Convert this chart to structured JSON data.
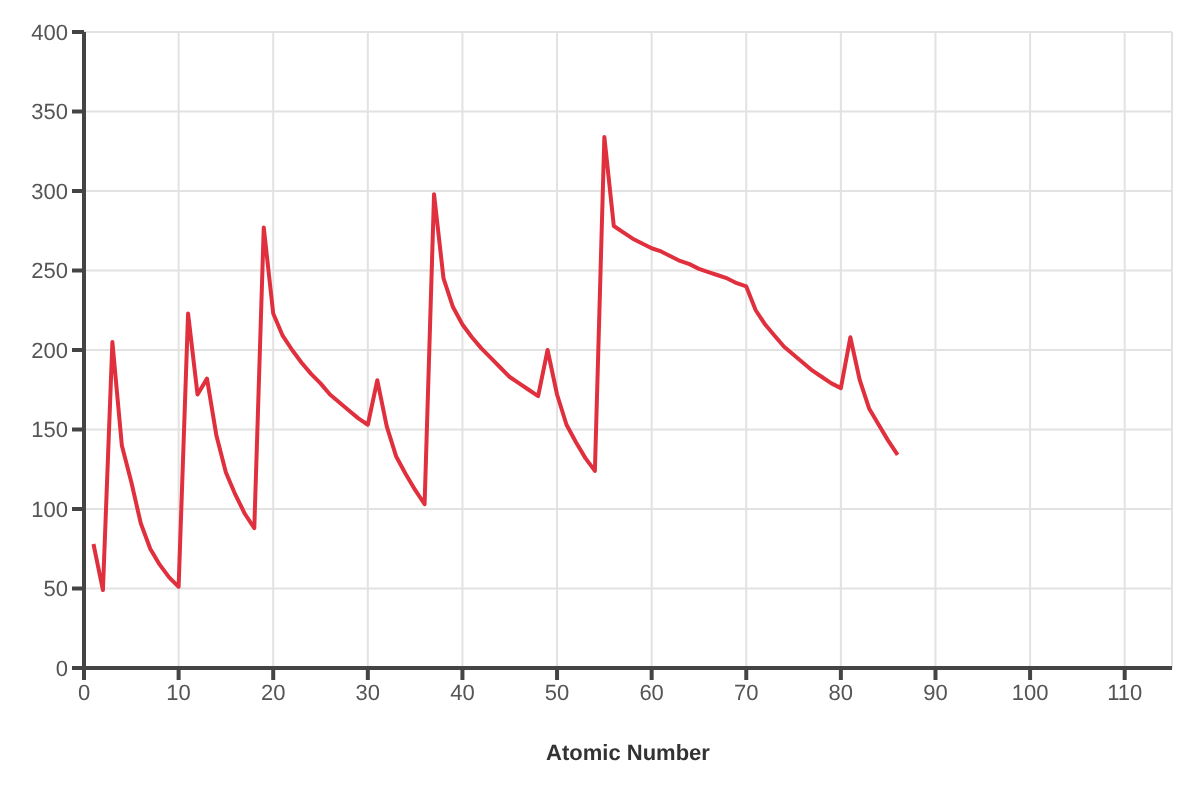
{
  "chart_data": {
    "type": "line",
    "xlabel": "Atomic Number",
    "x": [
      1,
      2,
      3,
      4,
      5,
      6,
      7,
      8,
      9,
      10,
      11,
      12,
      13,
      14,
      15,
      16,
      17,
      18,
      19,
      20,
      21,
      22,
      23,
      24,
      25,
      26,
      27,
      28,
      29,
      30,
      31,
      32,
      33,
      34,
      35,
      36,
      37,
      38,
      39,
      40,
      41,
      42,
      43,
      44,
      45,
      46,
      47,
      48,
      49,
      50,
      51,
      52,
      53,
      54,
      55,
      56,
      57,
      58,
      59,
      60,
      61,
      62,
      63,
      64,
      65,
      66,
      67,
      68,
      69,
      70,
      71,
      72,
      73,
      74,
      75,
      76,
      77,
      78,
      79,
      80,
      81,
      82,
      83,
      84,
      85,
      86
    ],
    "series": [
      {
        "color": "#e0303e",
        "values": [
          78,
          49,
          205,
          140,
          117,
          91,
          75,
          65,
          57,
          51,
          223,
          172,
          182,
          146,
          123,
          109,
          97,
          88,
          277,
          223,
          209,
          200,
          192,
          185,
          179,
          172,
          167,
          162,
          157,
          153,
          181,
          152,
          133,
          122,
          112,
          103,
          298,
          245,
          227,
          216,
          208,
          201,
          195,
          189,
          183,
          179,
          175,
          171,
          200,
          172,
          153,
          142,
          132,
          124,
          334,
          278,
          274,
          270,
          267,
          264,
          262,
          259,
          256,
          254,
          251,
          249,
          247,
          245,
          242,
          240,
          225,
          216,
          209,
          202,
          197,
          192,
          187,
          183,
          179,
          176,
          208,
          181,
          163,
          153,
          143,
          134
        ]
      }
    ],
    "xlim": [
      0,
      115
    ],
    "xticks": [
      0,
      10,
      20,
      30,
      40,
      50,
      60,
      70,
      80,
      90,
      100,
      110
    ],
    "ylim": [
      0,
      400
    ],
    "yticks": [
      0,
      50,
      100,
      150,
      200,
      250,
      300,
      350,
      400
    ],
    "grid": true,
    "legend": false,
    "marker": "none",
    "line_style": "solid"
  }
}
